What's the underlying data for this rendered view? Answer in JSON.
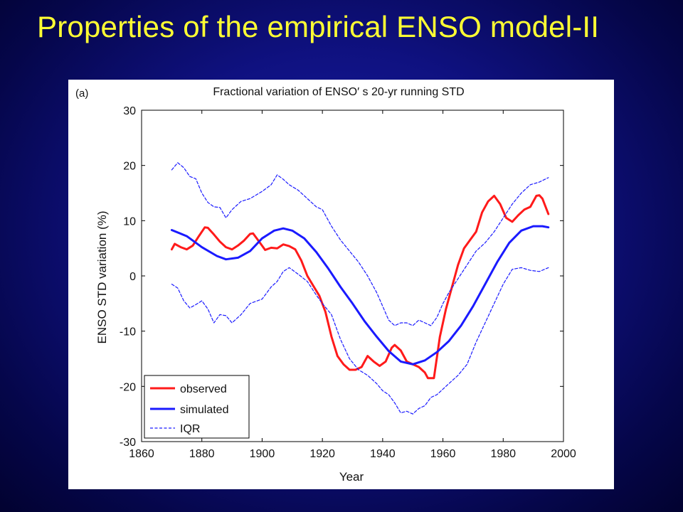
{
  "slide": {
    "title": "Properties of the empirical ENSO model-II"
  },
  "colors": {
    "background": "#0f1180",
    "title": "#ffff33",
    "observed": "#ff1a1a",
    "simulated": "#1a1aff",
    "iqr": "#1a1aff"
  },
  "chart_data": {
    "type": "line",
    "panel_label": "(a)",
    "title": "Fractional variation of ENSO′ s 20-yr running STD",
    "xlabel": "Year",
    "ylabel": "ENSO STD variation (%)",
    "xlim": [
      1860,
      2000
    ],
    "ylim": [
      -30,
      30
    ],
    "xticks": [
      1860,
      1880,
      1900,
      1920,
      1940,
      1960,
      1980,
      2000
    ],
    "yticks": [
      30,
      20,
      10,
      0,
      -10,
      -20,
      -30
    ],
    "grid": false,
    "legend": {
      "placement": "bottom-left",
      "entries": [
        "observed",
        "simulated",
        "IQR"
      ]
    },
    "series": [
      {
        "name": "observed",
        "style": "solid",
        "color": "#ff1a1a",
        "x": [
          1870,
          1871,
          1873,
          1875,
          1877,
          1879,
          1881,
          1882,
          1884,
          1886,
          1888,
          1890,
          1892,
          1894,
          1896,
          1897,
          1899,
          1901,
          1903,
          1905,
          1907,
          1909,
          1911,
          1913,
          1915,
          1917,
          1919,
          1921,
          1923,
          1925,
          1927,
          1929,
          1931,
          1933,
          1935,
          1937,
          1939,
          1941,
          1943,
          1944,
          1946,
          1948,
          1950,
          1952,
          1954,
          1955,
          1957,
          1959,
          1961,
          1963,
          1965,
          1967,
          1969,
          1971,
          1973,
          1975,
          1977,
          1979,
          1981,
          1983,
          1985,
          1987,
          1989,
          1991,
          1992,
          1993,
          1995
        ],
        "y": [
          4.8,
          5.8,
          5.2,
          4.8,
          5.5,
          7.2,
          8.8,
          8.7,
          7.5,
          6.2,
          5.2,
          4.8,
          5.5,
          6.4,
          7.6,
          7.7,
          6.2,
          4.7,
          5.1,
          5.0,
          5.7,
          5.4,
          4.8,
          2.8,
          0.0,
          -1.8,
          -3.6,
          -6.5,
          -11.0,
          -14.5,
          -16.0,
          -17.0,
          -17.0,
          -16.5,
          -14.5,
          -15.5,
          -16.3,
          -15.5,
          -13.0,
          -12.5,
          -13.5,
          -15.5,
          -16.0,
          -16.5,
          -17.5,
          -18.5,
          -18.5,
          -11.0,
          -6.0,
          -2.0,
          2.0,
          5.0,
          6.5,
          8.0,
          11.5,
          13.5,
          14.5,
          13.0,
          10.5,
          9.8,
          11.0,
          12.0,
          12.5,
          14.5,
          14.6,
          14.0,
          11.2
        ]
      },
      {
        "name": "simulated",
        "style": "solid",
        "color": "#1a1aff",
        "x": [
          1870,
          1875,
          1880,
          1885,
          1888,
          1892,
          1896,
          1900,
          1904,
          1907,
          1910,
          1914,
          1918,
          1922,
          1926,
          1930,
          1934,
          1938,
          1942,
          1946,
          1950,
          1954,
          1958,
          1962,
          1966,
          1970,
          1974,
          1978,
          1982,
          1986,
          1990,
          1993,
          1995
        ],
        "y": [
          8.3,
          7.2,
          5.2,
          3.6,
          3.0,
          3.3,
          4.5,
          6.8,
          8.2,
          8.6,
          8.2,
          6.8,
          4.3,
          1.3,
          -2.0,
          -5.0,
          -8.2,
          -11.0,
          -13.6,
          -15.5,
          -16.0,
          -15.3,
          -13.8,
          -11.8,
          -9.0,
          -5.5,
          -1.5,
          2.5,
          6.0,
          8.2,
          9.0,
          9.0,
          8.8
        ]
      },
      {
        "name": "IQR",
        "style": "dashed",
        "color": "#1a1aff",
        "x": [
          1870,
          1872,
          1874,
          1876,
          1878,
          1880,
          1882,
          1884,
          1886,
          1888,
          1890,
          1893,
          1896,
          1900,
          1903,
          1905,
          1907,
          1909,
          1912,
          1915,
          1918,
          1920,
          1923,
          1926,
          1929,
          1932,
          1935,
          1938,
          1940,
          1942,
          1944,
          1946,
          1948,
          1950,
          1952,
          1954,
          1956,
          1958,
          1960,
          1962,
          1965,
          1968,
          1971,
          1974,
          1977,
          1980,
          1983,
          1986,
          1989,
          1992,
          1995
        ],
        "y": [
          19.2,
          20.5,
          19.6,
          18.0,
          17.6,
          15.0,
          13.3,
          12.5,
          12.4,
          10.5,
          12.0,
          13.5,
          14.0,
          15.3,
          16.5,
          18.3,
          17.5,
          16.5,
          15.5,
          14.0,
          12.5,
          12.0,
          9.0,
          6.5,
          4.5,
          2.5,
          0.0,
          -3.0,
          -5.5,
          -8.0,
          -9.0,
          -8.5,
          -8.5,
          -9.0,
          -8.0,
          -8.5,
          -9.0,
          -7.5,
          -5.0,
          -3.0,
          -0.5,
          2.0,
          4.5,
          6.0,
          8.0,
          10.5,
          13.0,
          15.0,
          16.5,
          17.0,
          17.8
        ]
      },
      {
        "name": "IQR",
        "style": "dashed",
        "color": "#1a1aff",
        "x": [
          1870,
          1872,
          1874,
          1876,
          1878,
          1880,
          1882,
          1884,
          1886,
          1888,
          1890,
          1893,
          1896,
          1900,
          1903,
          1905,
          1907,
          1909,
          1912,
          1915,
          1918,
          1920,
          1923,
          1926,
          1929,
          1932,
          1935,
          1938,
          1940,
          1942,
          1944,
          1946,
          1948,
          1950,
          1952,
          1954,
          1956,
          1958,
          1960,
          1962,
          1965,
          1968,
          1971,
          1974,
          1977,
          1980,
          1983,
          1986,
          1989,
          1992,
          1995
        ],
        "y": [
          -1.5,
          -2.2,
          -4.5,
          -5.8,
          -5.2,
          -4.5,
          -6.0,
          -8.5,
          -7.0,
          -7.2,
          -8.5,
          -7.0,
          -5.0,
          -4.2,
          -2.0,
          -1.0,
          0.8,
          1.5,
          0.3,
          -1.0,
          -3.5,
          -5.0,
          -7.0,
          -11.5,
          -15.0,
          -17.0,
          -18.0,
          -19.5,
          -20.8,
          -21.5,
          -23.0,
          -24.8,
          -24.5,
          -25.0,
          -24.0,
          -23.5,
          -22.0,
          -21.5,
          -20.5,
          -19.5,
          -18.0,
          -16.0,
          -12.0,
          -8.5,
          -5.0,
          -1.5,
          1.2,
          1.5,
          1.0,
          0.8,
          1.5
        ]
      }
    ]
  }
}
